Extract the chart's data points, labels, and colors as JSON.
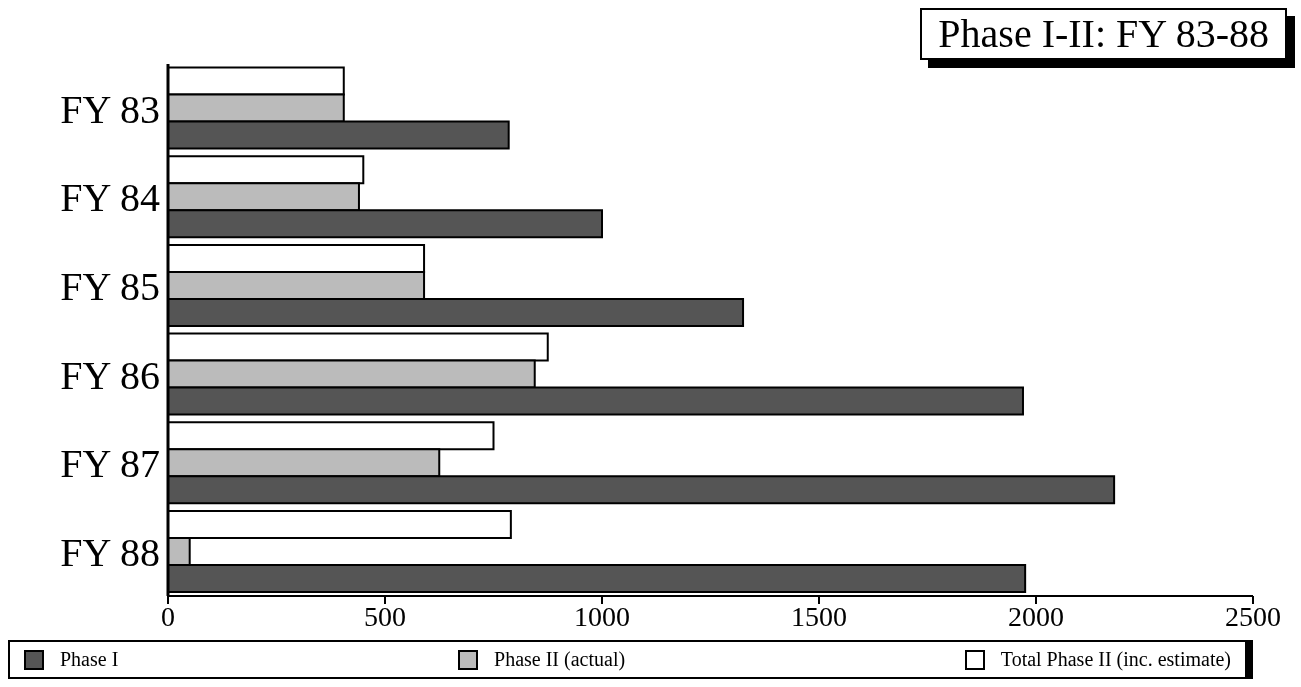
{
  "chart_data": {
    "type": "bar",
    "orientation": "horizontal",
    "title": "Phase I-II: FY 83-88",
    "categories": [
      "FY 83",
      "FY 84",
      "FY 85",
      "FY 86",
      "FY 87",
      "FY 88"
    ],
    "series": [
      {
        "name": "Phase I",
        "color": "#555555",
        "values": [
          785,
          1000,
          1325,
          1970,
          2180,
          1975
        ]
      },
      {
        "name": "Phase II (actual)",
        "color": "#bbbbbb",
        "values": [
          405,
          440,
          590,
          845,
          625,
          50
        ]
      },
      {
        "name": "Total Phase II (inc. estimate)",
        "color": "#ffffff",
        "values": [
          405,
          450,
          590,
          875,
          750,
          790
        ]
      }
    ],
    "xlim": [
      0,
      2500
    ],
    "xticks": [
      0,
      500,
      1000,
      1500,
      2000,
      2500
    ],
    "grid": false,
    "legend": "bottom"
  }
}
